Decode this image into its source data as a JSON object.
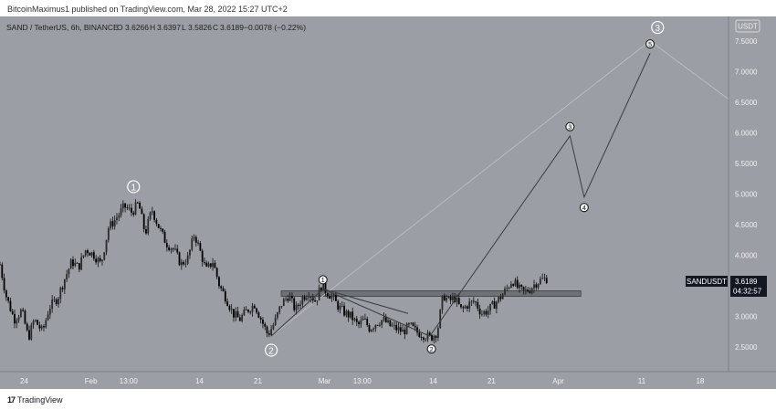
{
  "header": {
    "publisher_line": "BitcoinMaximus1 published on TradingView.com, Mar 28, 2022 15:27 UTC+2"
  },
  "legend": {
    "symbol": "SAND / TetherUS, 6h, BINANCE",
    "o_label": "O",
    "o_value": "3.6266",
    "h_label": "H",
    "h_value": "3.6397",
    "l_label": "L",
    "l_value": "3.5826",
    "c_label": "C",
    "c_value": "3.6189",
    "change": "−0.0078 (−0.22%)"
  },
  "currency_badge": "USDT",
  "price_tag": {
    "symbol": "SANDUSDT",
    "price": "3.6189",
    "countdown": "04:32:57"
  },
  "footer": {
    "brand": "TradingView",
    "logo_mark": "17"
  },
  "colors": {
    "background": "#9b9ea4",
    "candle": "#111111",
    "zone": "#5f6267",
    "wave_line": "#3a3c40",
    "label_bg": "#f2f2f2"
  },
  "chart_data": {
    "type": "candlestick",
    "y_axis": {
      "ticks": [
        "7.5000",
        "7.0000",
        "6.5000",
        "6.0000",
        "5.5000",
        "5.0000",
        "4.5000",
        "4.0000",
        "3.5000",
        "3.0000",
        "2.5000"
      ],
      "tick_values": [
        7.5,
        7.0,
        6.5,
        6.0,
        5.5,
        5.0,
        4.5,
        4.0,
        3.5,
        3.0,
        2.5
      ],
      "range": [
        2.1,
        7.9
      ]
    },
    "x_axis": {
      "ticks": [
        "24",
        "Feb",
        "13:00",
        "14",
        "21",
        "Mar",
        "13:00",
        "14",
        "21",
        "Apr",
        "11",
        "18"
      ],
      "tick_days": [
        -8,
        0,
        4.5,
        13,
        20,
        28,
        32.5,
        41,
        48,
        56,
        66,
        73
      ],
      "range": [
        -10.9,
        76.4
      ],
      "note": "tick_days are days counted from Feb 1, 2022"
    },
    "price_path": [
      [
        -10.9,
        3.85
      ],
      [
        -10.2,
        3.35
      ],
      [
        -9.2,
        2.95
      ],
      [
        -8.3,
        3.1
      ],
      [
        -7.5,
        2.65
      ],
      [
        -6.8,
        2.95
      ],
      [
        -5.8,
        2.75
      ],
      [
        -5.0,
        3.15
      ],
      [
        -4.0,
        3.3
      ],
      [
        -3.2,
        3.6
      ],
      [
        -2.3,
        3.9
      ],
      [
        -1.5,
        3.8
      ],
      [
        -0.6,
        4.1
      ],
      [
        0.4,
        4.0
      ],
      [
        1.2,
        3.85
      ],
      [
        2.1,
        4.45
      ],
      [
        3.0,
        4.6
      ],
      [
        4.0,
        4.8
      ],
      [
        4.9,
        4.7
      ],
      [
        5.7,
        4.85
      ],
      [
        6.5,
        4.35
      ],
      [
        7.3,
        4.75
      ],
      [
        8.0,
        4.5
      ],
      [
        9.0,
        4.2
      ],
      [
        9.9,
        4.1
      ],
      [
        10.8,
        3.85
      ],
      [
        11.6,
        3.95
      ],
      [
        12.4,
        4.35
      ],
      [
        13.0,
        4.1
      ],
      [
        13.8,
        3.75
      ],
      [
        14.6,
        3.9
      ],
      [
        15.4,
        3.5
      ],
      [
        16.2,
        3.3
      ],
      [
        17.0,
        3.05
      ],
      [
        17.8,
        2.95
      ],
      [
        18.7,
        3.1
      ],
      [
        19.6,
        3.2
      ],
      [
        20.4,
        2.95
      ],
      [
        21.2,
        2.7
      ],
      [
        22.0,
        2.9
      ],
      [
        22.8,
        3.2
      ],
      [
        23.7,
        3.35
      ],
      [
        24.5,
        3.1
      ],
      [
        25.3,
        3.3
      ],
      [
        26.1,
        3.4
      ],
      [
        26.9,
        3.25
      ],
      [
        27.6,
        3.5
      ],
      [
        28.3,
        3.4
      ],
      [
        29.0,
        3.3
      ],
      [
        29.7,
        3.15
      ],
      [
        30.5,
        3.05
      ],
      [
        31.2,
        3.0
      ],
      [
        32.0,
        2.85
      ],
      [
        32.7,
        2.95
      ],
      [
        33.4,
        2.8
      ],
      [
        34.2,
        2.9
      ],
      [
        35.0,
        2.95
      ],
      [
        35.8,
        2.85
      ],
      [
        36.6,
        2.8
      ],
      [
        37.4,
        2.75
      ],
      [
        38.2,
        2.85
      ],
      [
        39.0,
        2.75
      ],
      [
        39.9,
        2.7
      ],
      [
        40.7,
        2.65
      ],
      [
        41.5,
        2.75
      ],
      [
        42.2,
        3.35
      ],
      [
        42.9,
        3.25
      ],
      [
        43.6,
        3.3
      ],
      [
        44.4,
        3.1
      ],
      [
        45.2,
        3.2
      ],
      [
        46.0,
        3.25
      ],
      [
        46.8,
        3.05
      ],
      [
        47.6,
        3.1
      ],
      [
        48.3,
        3.2
      ],
      [
        49.0,
        3.3
      ],
      [
        49.8,
        3.45
      ],
      [
        50.5,
        3.6
      ],
      [
        51.2,
        3.45
      ],
      [
        51.9,
        3.4
      ],
      [
        52.6,
        3.45
      ],
      [
        53.3,
        3.55
      ],
      [
        54.0,
        3.6
      ],
      [
        54.6,
        3.62
      ]
    ],
    "resistance_zone": {
      "price_from": 3.33,
      "price_to": 3.42,
      "day_from": 22.8,
      "day_to": 58.7
    },
    "wave_projection": [
      [
        27.8,
        3.45
      ],
      [
        40.6,
        2.68
      ],
      [
        57.4,
        5.95
      ],
      [
        59.1,
        4.95
      ],
      [
        67.0,
        7.3
      ]
    ],
    "minor_lines": [
      [
        [
          21.6,
          2.68
        ],
        [
          27.8,
          3.45
        ]
      ],
      [
        [
          27.8,
          3.45
        ],
        [
          38.0,
          3.05
        ]
      ]
    ],
    "faint_lines": [
      [
        [
          21.6,
          2.68
        ],
        [
          67.0,
          7.5
        ]
      ],
      [
        [
          67.0,
          7.5
        ],
        [
          76.4,
          6.55
        ]
      ]
    ],
    "wave_labels": [
      {
        "text": "1",
        "day": 5.1,
        "price": 5.12,
        "style": "outline"
      },
      {
        "text": "2",
        "day": 21.6,
        "price": 2.45,
        "style": "outline"
      },
      {
        "text": "3",
        "day": 67.9,
        "price": 7.72,
        "style": "outline"
      },
      {
        "text": "1",
        "day": 27.8,
        "price": 3.6,
        "style": "circle"
      },
      {
        "text": "2",
        "day": 40.8,
        "price": 2.47,
        "style": "circle"
      },
      {
        "text": "3",
        "day": 57.4,
        "price": 6.1,
        "style": "circle"
      },
      {
        "text": "4",
        "day": 59.1,
        "price": 4.78,
        "style": "circle"
      },
      {
        "text": "5",
        "day": 67.0,
        "price": 7.45,
        "style": "circle"
      }
    ]
  }
}
